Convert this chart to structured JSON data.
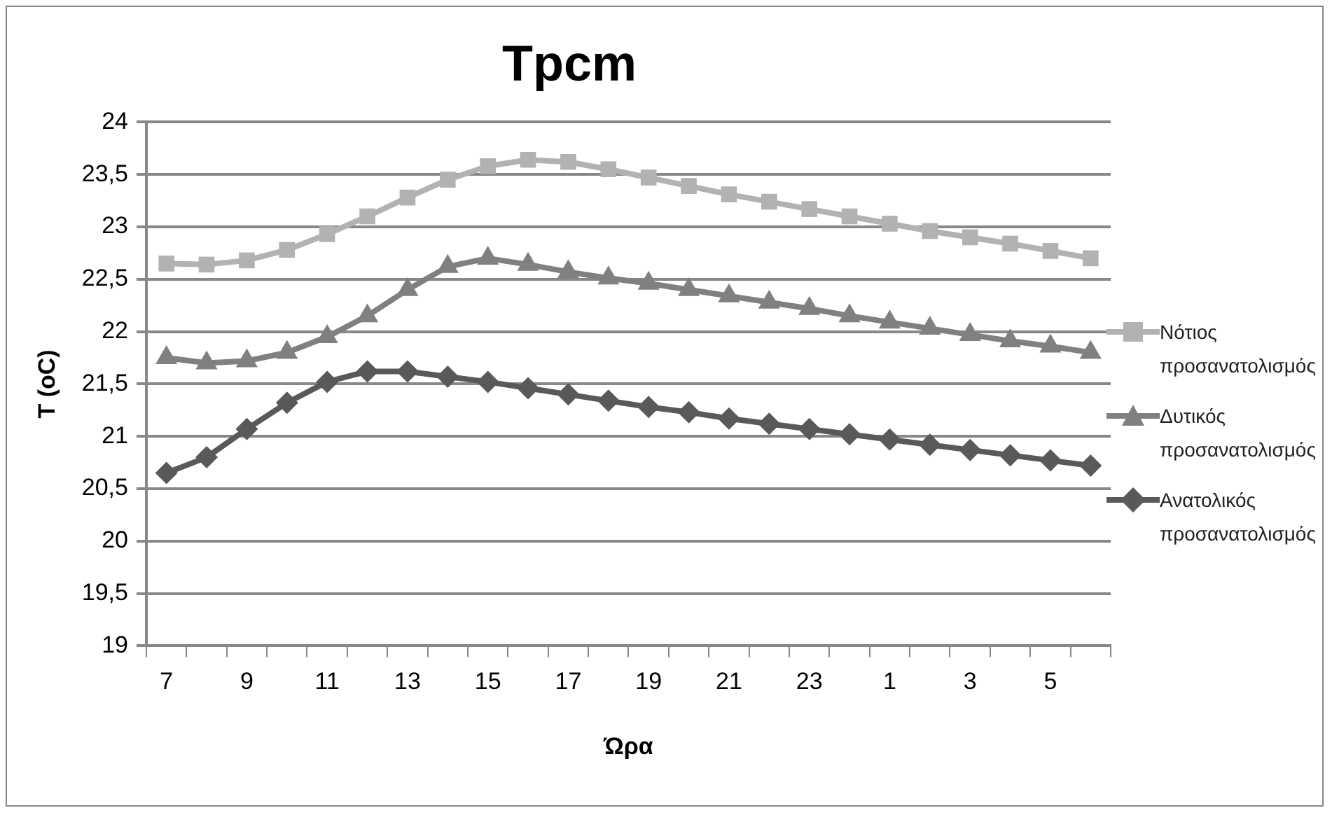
{
  "chart_data": {
    "type": "line",
    "title": "Tpcm",
    "xlabel": "Ώρα",
    "ylabel": "T (oC)",
    "categories": [
      "7",
      null,
      "9",
      null,
      "11",
      null,
      "13",
      null,
      "15",
      null,
      "17",
      null,
      "19",
      null,
      "21",
      null,
      "23",
      null,
      "1",
      null,
      "3",
      null,
      "5",
      null
    ],
    "series": [
      {
        "name": "Νότιος προσανατολισμός",
        "color": "#b2b2b2",
        "marker": "square",
        "values": [
          22.65,
          22.64,
          22.68,
          22.78,
          22.93,
          23.1,
          23.28,
          23.45,
          23.58,
          23.64,
          23.62,
          23.55,
          23.47,
          23.39,
          23.31,
          23.24,
          23.17,
          23.1,
          23.03,
          22.96,
          22.9,
          22.84,
          22.77,
          22.7
        ]
      },
      {
        "name": "Δυτικός προσανατολισμός",
        "color": "#808080",
        "marker": "triangle",
        "values": [
          21.75,
          21.7,
          21.72,
          21.8,
          21.95,
          22.15,
          22.4,
          22.62,
          22.7,
          22.64,
          22.57,
          22.51,
          22.46,
          22.4,
          22.34,
          22.28,
          22.22,
          22.15,
          22.09,
          22.03,
          21.97,
          21.91,
          21.86,
          21.8
        ]
      },
      {
        "name": "Ανατολικός προσανατολισμός",
        "color": "#595959",
        "marker": "diamond",
        "values": [
          20.65,
          20.8,
          21.07,
          21.32,
          21.52,
          21.62,
          21.62,
          21.57,
          21.52,
          21.46,
          21.4,
          21.34,
          21.28,
          21.23,
          21.17,
          21.12,
          21.07,
          21.02,
          20.97,
          20.92,
          20.87,
          20.82,
          20.77,
          20.72
        ]
      }
    ],
    "ylim": [
      19,
      24
    ],
    "yticks": [
      19,
      {
        "value": 19.5,
        "label": "19,5"
      },
      20,
      {
        "value": 20.5,
        "label": "20,5"
      },
      21,
      {
        "value": 21.5,
        "label": "21,5"
      },
      22,
      {
        "value": 22.5,
        "label": "22,5"
      },
      23,
      {
        "value": 23.5,
        "label": "23,5"
      },
      24
    ],
    "grid": "y",
    "legend": "right",
    "line_style": "solid"
  }
}
